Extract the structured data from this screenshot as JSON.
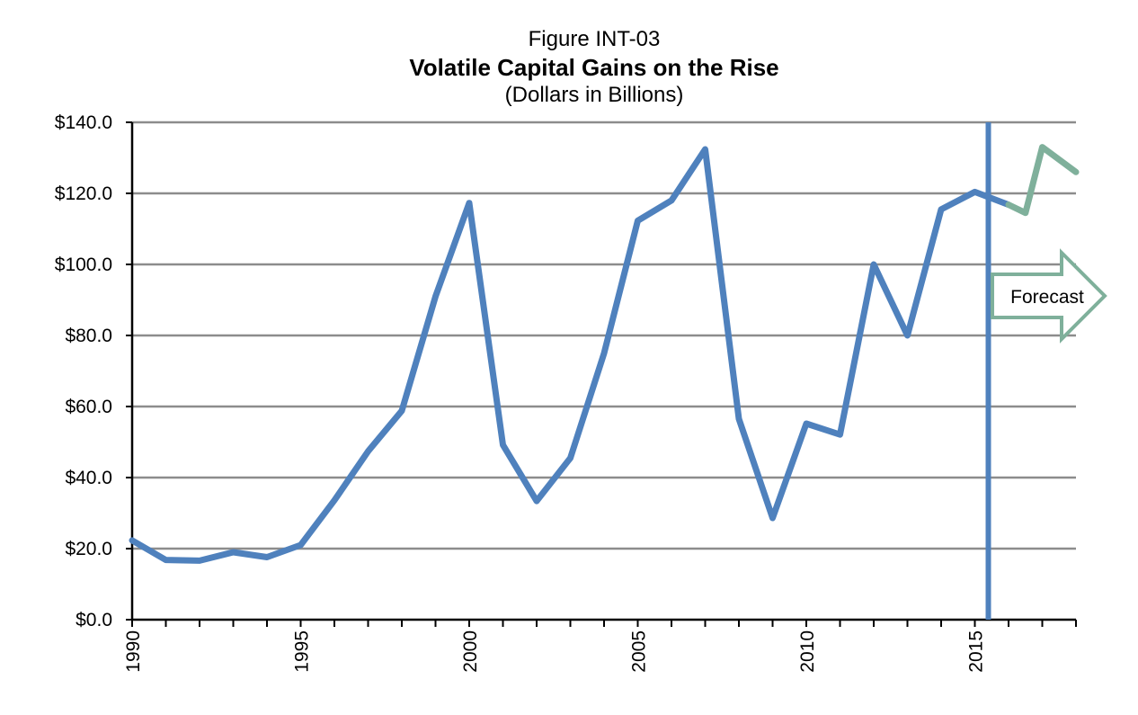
{
  "chart_data": {
    "type": "line",
    "figure_label": "Figure INT-03",
    "title": "Volatile Capital Gains on the Rise",
    "subtitle": "(Dollars in Billions)",
    "xlabel": "",
    "ylabel": "",
    "xlim": [
      1990,
      2018
    ],
    "ylim": [
      0,
      140
    ],
    "y_ticks": [
      0,
      20,
      40,
      60,
      80,
      100,
      120,
      140
    ],
    "y_tick_labels": [
      "$0.0",
      "$20.0",
      "$40.0",
      "$60.0",
      "$80.0",
      "$100.0",
      "$120.0",
      "$140.0"
    ],
    "x_tick_labels": [
      "1990",
      "1995",
      "2000",
      "2005",
      "2010",
      "2015"
    ],
    "grid": "horizontal",
    "series": [
      {
        "color": "#4f81bd",
        "x": [
          1990,
          1991,
          1992,
          1993,
          1994,
          1995,
          1996,
          1997,
          1998,
          1999,
          2000,
          2001,
          2002,
          2003,
          2004,
          2005,
          2006,
          2007,
          2008,
          2009,
          2010,
          2011,
          2012,
          2013,
          2014,
          2015,
          2016
        ],
        "values": [
          22.3,
          16.8,
          16.6,
          19.0,
          17.6,
          21.0,
          33.6,
          47.4,
          58.8,
          91.0,
          117.3,
          49.2,
          33.4,
          45.5,
          75.0,
          112.3,
          118.0,
          132.4,
          56.5,
          28.6,
          55.2,
          52.1,
          100.0,
          80.0,
          115.5,
          120.4,
          116.8
        ]
      },
      {
        "color": "#7fb09b",
        "x": [
          2016,
          2016.5,
          2017,
          2018
        ],
        "values": [
          116.8,
          114.5,
          133.0,
          126.0
        ]
      }
    ],
    "divider_x": 2015.4,
    "divider_color": "#4f81bd",
    "annotation": {
      "text": "Forecast",
      "color": "#7fb09b"
    }
  }
}
